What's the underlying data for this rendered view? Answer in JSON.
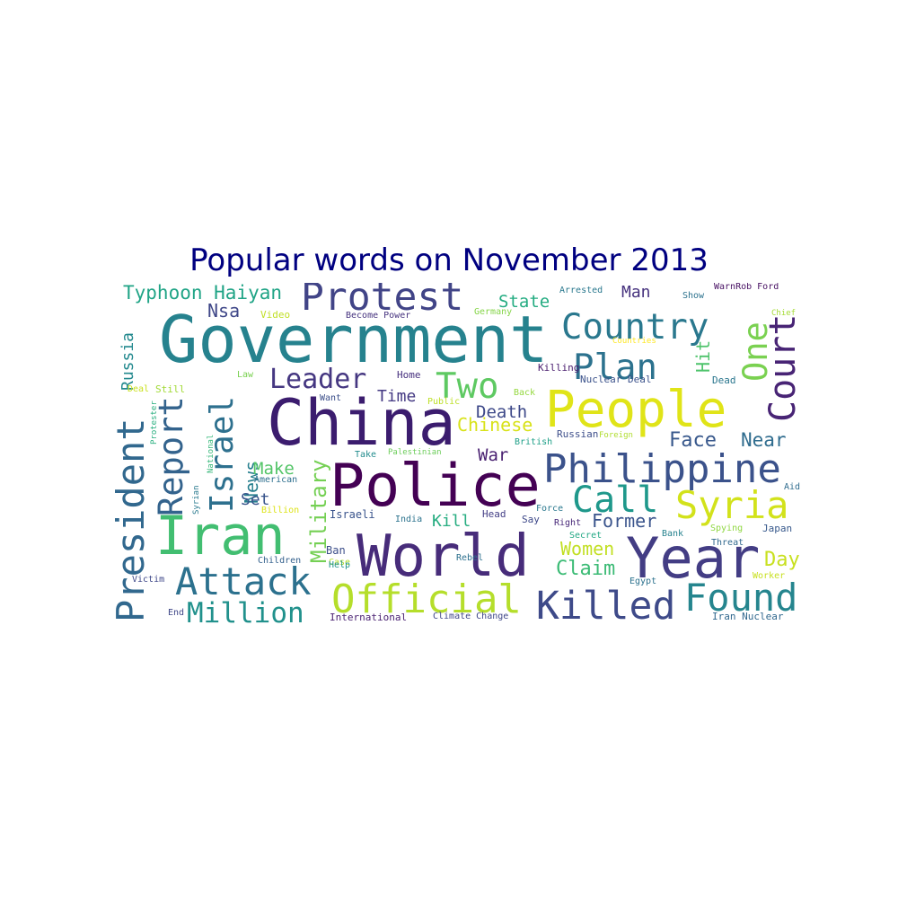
{
  "chart_data": {
    "type": "wordcloud",
    "title": "Popular words on November 2013",
    "palette": "viridis",
    "background": "#ffffff",
    "words": [
      {
        "text": "Government",
        "weight": 1.0,
        "color": "#26828e"
      },
      {
        "text": "China",
        "weight": 0.97,
        "color": "#3b1c6e"
      },
      {
        "text": "Police",
        "weight": 0.92,
        "color": "#440154"
      },
      {
        "text": "World",
        "weight": 0.9,
        "color": "#472c7a"
      },
      {
        "text": "People",
        "weight": 0.85,
        "color": "#e0e418"
      },
      {
        "text": "Year",
        "weight": 0.82,
        "color": "#433d84"
      },
      {
        "text": "Iran",
        "weight": 0.8,
        "color": "#42be71"
      },
      {
        "text": "President",
        "weight": 0.7,
        "color": "#31688e"
      },
      {
        "text": "Philippine",
        "weight": 0.66,
        "color": "#3b528b"
      },
      {
        "text": "Protest",
        "weight": 0.63,
        "color": "#414487"
      },
      {
        "text": "Country",
        "weight": 0.62,
        "color": "#2a788e"
      },
      {
        "text": "Official",
        "weight": 0.61,
        "color": "#b5de2b"
      },
      {
        "text": "Killed",
        "weight": 0.6,
        "color": "#3e4a89"
      },
      {
        "text": "Found",
        "weight": 0.58,
        "color": "#25858e"
      },
      {
        "text": "Attack",
        "weight": 0.57,
        "color": "#2c718e"
      },
      {
        "text": "Court",
        "weight": 0.56,
        "color": "#482475"
      },
      {
        "text": "Report",
        "weight": 0.55,
        "color": "#33638d"
      },
      {
        "text": "Plan",
        "weight": 0.55,
        "color": "#2c728e"
      },
      {
        "text": "Syria",
        "weight": 0.55,
        "color": "#d2e21b"
      },
      {
        "text": "Call",
        "weight": 0.55,
        "color": "#1f988b"
      },
      {
        "text": "Israel",
        "weight": 0.52,
        "color": "#2d708e"
      },
      {
        "text": "Two",
        "weight": 0.52,
        "color": "#5ec962"
      },
      {
        "text": "One",
        "weight": 0.5,
        "color": "#7ad151"
      },
      {
        "text": "Million",
        "weight": 0.45,
        "color": "#21918c"
      },
      {
        "text": "Leader",
        "weight": 0.44,
        "color": "#453781"
      },
      {
        "text": "Military",
        "weight": 0.38,
        "color": "#75d054"
      },
      {
        "text": "Typhoon Haiyan",
        "weight": 0.34,
        "color": "#20a486"
      },
      {
        "text": "Face",
        "weight": 0.34,
        "color": "#38588c"
      },
      {
        "text": "Near",
        "weight": 0.33,
        "color": "#2f6c8e"
      },
      {
        "text": "Former",
        "weight": 0.33,
        "color": "#3a548c"
      },
      {
        "text": "Day",
        "weight": 0.33,
        "color": "#c8e020"
      },
      {
        "text": "Claim",
        "weight": 0.33,
        "color": "#3bbb75"
      },
      {
        "text": "Chinese",
        "weight": 0.32,
        "color": "#d8e219"
      },
      {
        "text": "Death",
        "weight": 0.32,
        "color": "#3e4989"
      },
      {
        "text": "News",
        "weight": 0.31,
        "color": "#277f8e"
      },
      {
        "text": "Women",
        "weight": 0.31,
        "color": "#c2df23"
      },
      {
        "text": "Russia",
        "weight": 0.3,
        "color": "#23898e"
      },
      {
        "text": "Make",
        "weight": 0.3,
        "color": "#54c568"
      },
      {
        "text": "State",
        "weight": 0.3,
        "color": "#25ac82"
      },
      {
        "text": "Hit",
        "weight": 0.3,
        "color": "#4ec36b"
      },
      {
        "text": "Man",
        "weight": 0.3,
        "color": "#46327e"
      },
      {
        "text": "Nsa",
        "weight": 0.29,
        "color": "#3f4788"
      },
      {
        "text": "Kill",
        "weight": 0.28,
        "color": "#27ad81"
      },
      {
        "text": "Time",
        "weight": 0.28,
        "color": "#443983"
      },
      {
        "text": "War",
        "weight": 0.27,
        "color": "#481f70"
      },
      {
        "text": "Set",
        "weight": 0.27,
        "color": "#39558c"
      },
      {
        "text": "Israeli",
        "weight": 0.2,
        "color": "#3a548c"
      },
      {
        "text": "Home",
        "weight": 0.16,
        "color": "#46307e"
      },
      {
        "text": "Want",
        "weight": 0.16,
        "color": "#3c4f8a"
      },
      {
        "text": "Law",
        "weight": 0.15,
        "color": "#7ad151"
      },
      {
        "text": "Still",
        "weight": 0.16,
        "color": "#a2da37"
      },
      {
        "text": "Deal",
        "weight": 0.14,
        "color": "#cae11f"
      },
      {
        "text": "Back",
        "weight": 0.15,
        "color": "#95d840"
      },
      {
        "text": "Public",
        "weight": 0.14,
        "color": "#bddf26"
      },
      {
        "text": "Take",
        "weight": 0.15,
        "color": "#228c8d"
      },
      {
        "text": "Palestinian",
        "weight": 0.13,
        "color": "#6ccd5a"
      },
      {
        "text": "British",
        "weight": 0.13,
        "color": "#1fa088"
      },
      {
        "text": "Russian",
        "weight": 0.15,
        "color": "#3d4e8a"
      },
      {
        "text": "Foreign",
        "weight": 0.13,
        "color": "#b0dd2f"
      },
      {
        "text": "Nuclear Deal",
        "weight": 0.15,
        "color": "#3b528b"
      },
      {
        "text": "Killing",
        "weight": 0.14,
        "color": "#481b6d"
      },
      {
        "text": "Countries",
        "weight": 0.12,
        "color": "#fde725"
      },
      {
        "text": "Arrested",
        "weight": 0.15,
        "color": "#2a788e"
      },
      {
        "text": "Show",
        "weight": 0.13,
        "color": "#2c728e"
      },
      {
        "text": "Chief",
        "weight": 0.13,
        "color": "#a5db36"
      },
      {
        "text": "WarnRob Ford",
        "weight": 0.13,
        "color": "#471063"
      },
      {
        "text": "Dead",
        "weight": 0.15,
        "color": "#2a768e"
      },
      {
        "text": "Become Power",
        "weight": 0.14,
        "color": "#46337f"
      },
      {
        "text": "Germany",
        "weight": 0.12,
        "color": "#86d549"
      },
      {
        "text": "Video",
        "weight": 0.14,
        "color": "#c0df25"
      },
      {
        "text": "National",
        "weight": 0.12,
        "color": "#35b779"
      },
      {
        "text": "Protester",
        "weight": 0.12,
        "color": "#29af7f"
      },
      {
        "text": "Syrian",
        "weight": 0.12,
        "color": "#29798e"
      },
      {
        "text": "American",
        "weight": 0.13,
        "color": "#2e6f8e"
      },
      {
        "text": "Billion",
        "weight": 0.13,
        "color": "#dde318"
      },
      {
        "text": "Children",
        "weight": 0.13,
        "color": "#34618d"
      },
      {
        "text": "Victim",
        "weight": 0.13,
        "color": "#3f4889"
      },
      {
        "text": "End",
        "weight": 0.14,
        "color": "#3f4788"
      },
      {
        "text": "Case",
        "weight": 0.13,
        "color": "#b0dd2f"
      },
      {
        "text": "Ban",
        "weight": 0.15,
        "color": "#3c4f8a"
      },
      {
        "text": "Help",
        "weight": 0.13,
        "color": "#20928c"
      },
      {
        "text": "India",
        "weight": 0.13,
        "color": "#2c738e"
      },
      {
        "text": "Head",
        "weight": 0.14,
        "color": "#433e85"
      },
      {
        "text": "Rebel",
        "weight": 0.14,
        "color": "#2d708e"
      },
      {
        "text": "Say",
        "weight": 0.14,
        "color": "#3e4989"
      },
      {
        "text": "Right",
        "weight": 0.13,
        "color": "#482878"
      },
      {
        "text": "Force",
        "weight": 0.13,
        "color": "#2a788e"
      },
      {
        "text": "Secret",
        "weight": 0.13,
        "color": "#22a884"
      },
      {
        "text": "Bank",
        "weight": 0.13,
        "color": "#26828e"
      },
      {
        "text": "Egypt",
        "weight": 0.13,
        "color": "#2c728e"
      },
      {
        "text": "Spying",
        "weight": 0.13,
        "color": "#90d743"
      },
      {
        "text": "Japan",
        "weight": 0.14,
        "color": "#38598c"
      },
      {
        "text": "Threat",
        "weight": 0.13,
        "color": "#31688e"
      },
      {
        "text": "Aid",
        "weight": 0.13,
        "color": "#2f6c8e"
      },
      {
        "text": "Worker",
        "weight": 0.13,
        "color": "#c8e020"
      },
      {
        "text": "Iran Nuclear",
        "weight": 0.14,
        "color": "#31688e"
      },
      {
        "text": "International",
        "weight": 0.15,
        "color": "#481f70"
      },
      {
        "text": "Climate Change",
        "weight": 0.14,
        "color": "#3f4788"
      }
    ]
  }
}
